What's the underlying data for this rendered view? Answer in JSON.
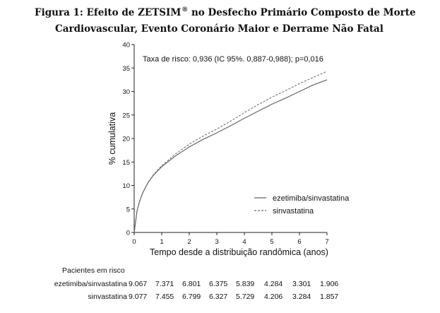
{
  "figure": {
    "title_line1": "Figura 1: Efeito de ZETSIM",
    "title_sup": "®",
    "title_line1_rest": " no Desfecho Primário Composto de Morte",
    "title_line2": "Cardiovascular, Evento Coronário Maior e Derrame Não Fatal"
  },
  "chart_data": {
    "type": "line",
    "xlabel": "Tempo desde a distribuição randômica (anos)",
    "ylabel": "% cumulativa",
    "xlim": [
      0,
      7
    ],
    "ylim": [
      0,
      40
    ],
    "xticks": [
      0,
      1,
      2,
      3,
      4,
      5,
      6,
      7
    ],
    "yticks": [
      0,
      5,
      10,
      15,
      20,
      25,
      30,
      35,
      40
    ],
    "xtick_labels": [
      "0",
      "1",
      "2",
      "3",
      "4",
      "5",
      "6",
      "7"
    ],
    "ytick_labels": [
      "0",
      "5",
      "10",
      "15",
      "20",
      "25",
      "30",
      "35",
      "40"
    ],
    "grid": false,
    "annotation": "Taxa de risco: 0,936 (IC 95%. 0,887-0,988); p=0,016",
    "legend_position": "right-middle",
    "series": [
      {
        "name": "ezetimiba/sinvastatina",
        "style": "solid",
        "color": "#666666",
        "x": [
          0,
          0.1,
          0.2,
          0.3,
          0.5,
          0.7,
          1,
          1.5,
          2,
          2.5,
          3,
          3.5,
          4,
          4.5,
          5,
          5.5,
          6,
          6.5,
          7
        ],
        "y": [
          0,
          4.5,
          6.7,
          8.3,
          10.6,
          12.2,
          14.0,
          16.3,
          18.2,
          19.8,
          21.2,
          22.7,
          24.3,
          25.8,
          27.3,
          28.6,
          30.0,
          31.4,
          32.5
        ]
      },
      {
        "name": "sinvastatina",
        "style": "dashed",
        "color": "#666666",
        "x": [
          0,
          0.1,
          0.2,
          0.3,
          0.5,
          0.7,
          1,
          1.5,
          2,
          2.5,
          3,
          3.5,
          4,
          4.5,
          5,
          5.5,
          6,
          6.5,
          7
        ],
        "y": [
          0,
          4.5,
          6.7,
          8.3,
          10.6,
          12.3,
          14.2,
          16.7,
          18.8,
          20.5,
          22.0,
          23.7,
          25.5,
          27.2,
          28.8,
          30.2,
          31.7,
          33.0,
          34.3
        ]
      }
    ]
  },
  "risk_table": {
    "header": "Pacientes em risco",
    "rows": [
      {
        "label": "ezetimiba/sinvastatina",
        "values": [
          "9.067",
          "7.371",
          "6.801",
          "6.375",
          "5.839",
          "4.284",
          "3.301",
          "1.906"
        ]
      },
      {
        "label": "sinvastatina",
        "values": [
          "9.077",
          "7.455",
          "6.799",
          "6.327",
          "5.729",
          "4.206",
          "3.284",
          "1.857"
        ]
      }
    ]
  }
}
